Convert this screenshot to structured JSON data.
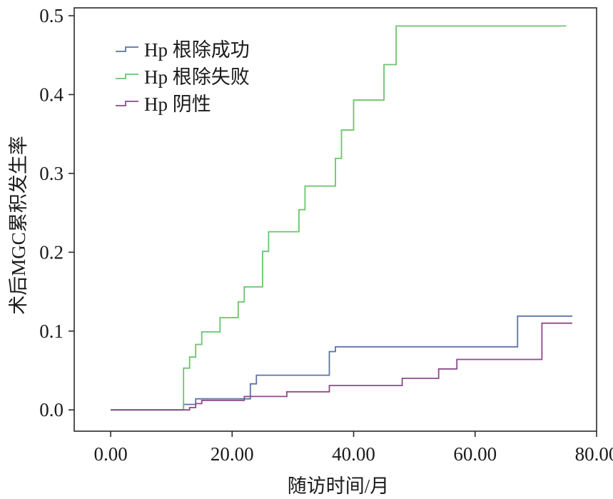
{
  "chart_data": {
    "type": "line",
    "step": true,
    "xlabel": "随访时间/月",
    "ylabel": "术后MGC累积发生率",
    "xlim": [
      -6,
      80
    ],
    "ylim": [
      -0.027,
      0.51
    ],
    "x_ticks": [
      "0.00",
      "20.00",
      "40.00",
      "60.00",
      "80.00"
    ],
    "x_tick_values": [
      0,
      20,
      40,
      60,
      80
    ],
    "y_ticks": [
      "0.0",
      "0.1",
      "0.2",
      "0.3",
      "0.4",
      "0.5"
    ],
    "y_tick_values": [
      0,
      0.1,
      0.2,
      0.3,
      0.4,
      0.5
    ],
    "grid": false,
    "legend_position": "top-left",
    "series": [
      {
        "name": "Hp 根除成功",
        "color": "#5b73a8",
        "points": [
          [
            0,
            0
          ],
          [
            12,
            0
          ],
          [
            12,
            0.007
          ],
          [
            14,
            0.007
          ],
          [
            14,
            0.014
          ],
          [
            23,
            0.014
          ],
          [
            23,
            0.033
          ],
          [
            24,
            0.033
          ],
          [
            24,
            0.044
          ],
          [
            36,
            0.044
          ],
          [
            36,
            0.074
          ],
          [
            37,
            0.074
          ],
          [
            37,
            0.08
          ],
          [
            67,
            0.08
          ],
          [
            67,
            0.119
          ],
          [
            76,
            0.119
          ]
        ]
      },
      {
        "name": "Hp 根除失败",
        "color": "#6cc46c",
        "points": [
          [
            0,
            0
          ],
          [
            12,
            0
          ],
          [
            12,
            0.053
          ],
          [
            13,
            0.053
          ],
          [
            13,
            0.067
          ],
          [
            14,
            0.067
          ],
          [
            14,
            0.083
          ],
          [
            15,
            0.083
          ],
          [
            15,
            0.099
          ],
          [
            18,
            0.099
          ],
          [
            18,
            0.117
          ],
          [
            21,
            0.117
          ],
          [
            21,
            0.137
          ],
          [
            22,
            0.137
          ],
          [
            22,
            0.156
          ],
          [
            25,
            0.156
          ],
          [
            25,
            0.201
          ],
          [
            26,
            0.201
          ],
          [
            26,
            0.226
          ],
          [
            31,
            0.226
          ],
          [
            31,
            0.254
          ],
          [
            32,
            0.254
          ],
          [
            32,
            0.284
          ],
          [
            37,
            0.284
          ],
          [
            37,
            0.319
          ],
          [
            38,
            0.319
          ],
          [
            38,
            0.355
          ],
          [
            40,
            0.355
          ],
          [
            40,
            0.393
          ],
          [
            45,
            0.393
          ],
          [
            45,
            0.438
          ],
          [
            47,
            0.438
          ],
          [
            47,
            0.487
          ],
          [
            75,
            0.487
          ]
        ]
      },
      {
        "name": "Hp 阴性",
        "color": "#8c4a8c",
        "points": [
          [
            0,
            0
          ],
          [
            13,
            0
          ],
          [
            13,
            0.003
          ],
          [
            14,
            0.003
          ],
          [
            14,
            0.008
          ],
          [
            15,
            0.008
          ],
          [
            15,
            0.012
          ],
          [
            22,
            0.012
          ],
          [
            22,
            0.017
          ],
          [
            29,
            0.017
          ],
          [
            29,
            0.023
          ],
          [
            36,
            0.023
          ],
          [
            36,
            0.031
          ],
          [
            48,
            0.031
          ],
          [
            48,
            0.04
          ],
          [
            54,
            0.04
          ],
          [
            54,
            0.052
          ],
          [
            57,
            0.052
          ],
          [
            57,
            0.064
          ],
          [
            71,
            0.064
          ],
          [
            71,
            0.11
          ],
          [
            76,
            0.11
          ]
        ]
      }
    ]
  }
}
